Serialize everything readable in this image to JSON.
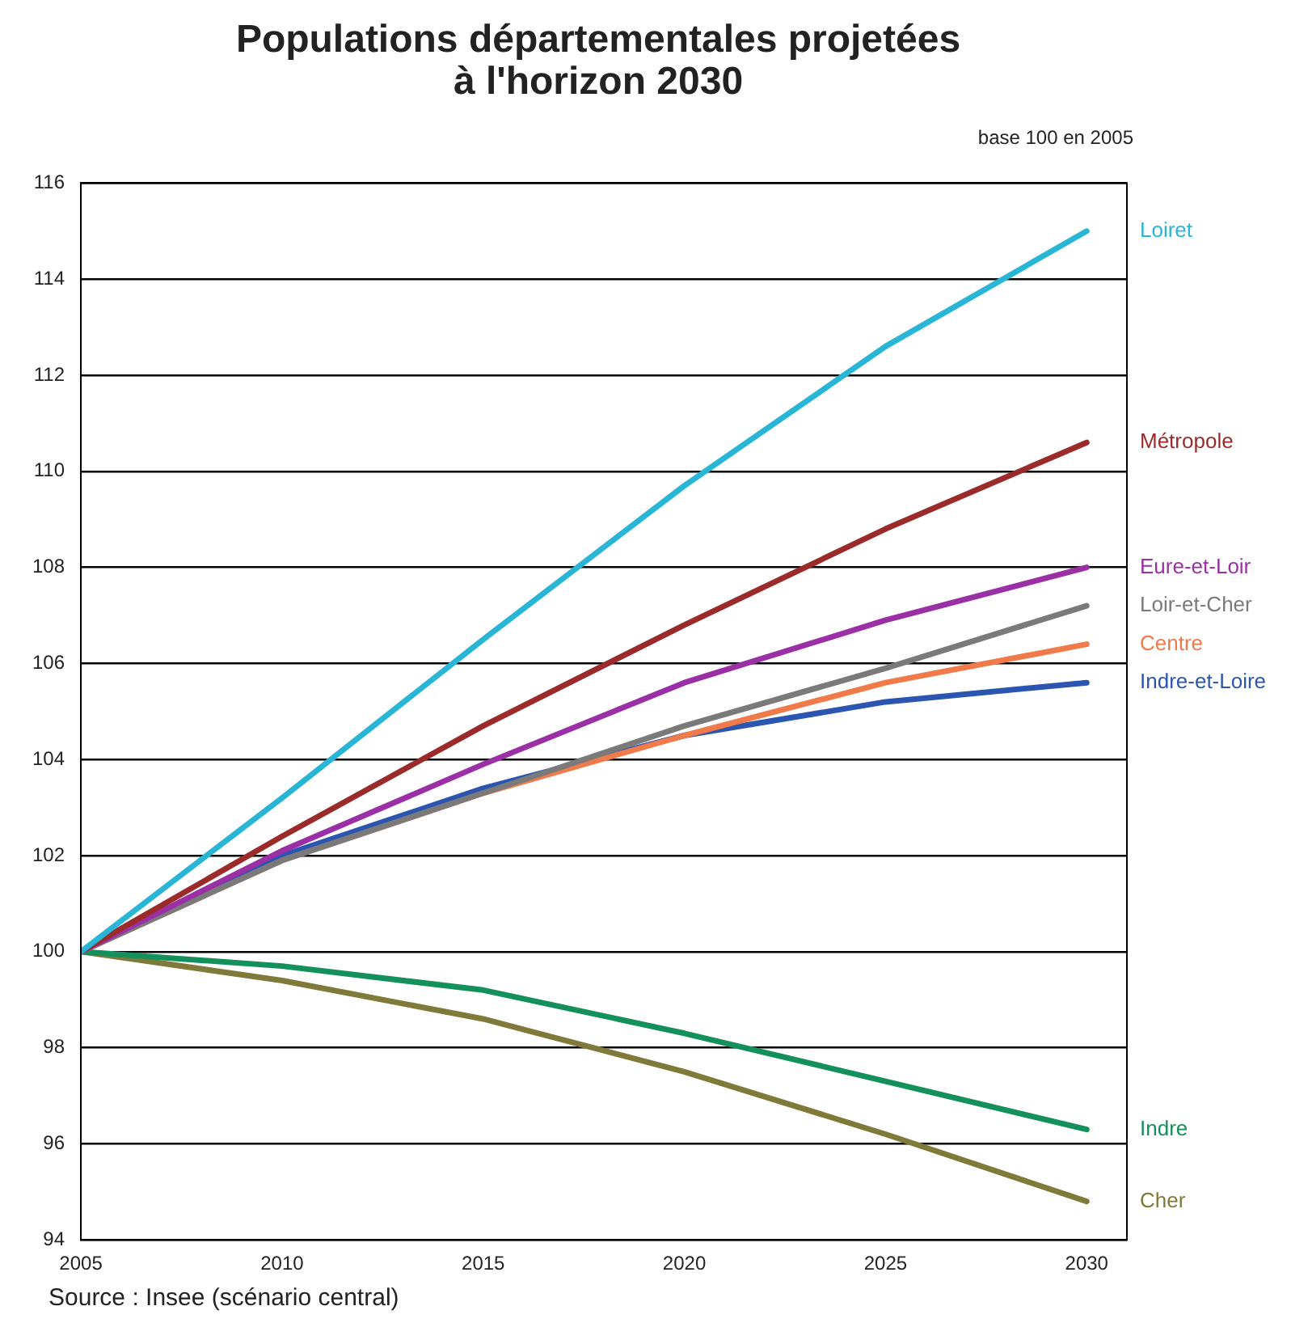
{
  "chart_data": {
    "type": "line",
    "title": "Populations départementales projetées à l'horizon 2030",
    "annotations": [
      "base 100 en 2005",
      "Source : Insee (scénario central)"
    ],
    "x": [
      2005,
      2010,
      2015,
      2020,
      2025,
      2030
    ],
    "series": [
      {
        "name": "Loiret",
        "color": "#29b6d6",
        "values": [
          100,
          103.2,
          106.5,
          109.7,
          112.6,
          115.0
        ]
      },
      {
        "name": "Métropole",
        "color": "#9b2b2b",
        "values": [
          100,
          102.4,
          104.7,
          106.8,
          108.8,
          110.6
        ]
      },
      {
        "name": "Eure-et-Loir",
        "color": "#9b2fa6",
        "values": [
          100,
          102.1,
          103.9,
          105.6,
          106.9,
          108.0
        ]
      },
      {
        "name": "Loir-et-Cher",
        "color": "#7a7a7a",
        "values": [
          100,
          101.9,
          103.3,
          104.7,
          105.9,
          107.2
        ]
      },
      {
        "name": "Centre",
        "color": "#f07a4a",
        "values": [
          100,
          101.9,
          103.3,
          104.5,
          105.6,
          106.4
        ]
      },
      {
        "name": "Indre-et-Loire",
        "color": "#2a55b0",
        "values": [
          100,
          102.0,
          103.4,
          104.5,
          105.2,
          105.6
        ]
      },
      {
        "name": "Indre",
        "color": "#14905a",
        "values": [
          100,
          99.7,
          99.2,
          98.3,
          97.3,
          96.3
        ]
      },
      {
        "name": "Cher",
        "color": "#7f7a3a",
        "values": [
          100,
          99.4,
          98.6,
          97.5,
          96.2,
          94.8
        ]
      }
    ],
    "xlim": [
      2005,
      2031
    ],
    "xticks": [
      2005,
      2010,
      2015,
      2020,
      2025,
      2030
    ],
    "ylim": [
      94,
      116
    ],
    "yticks": [
      94,
      96,
      98,
      100,
      102,
      104,
      106,
      108,
      110,
      112,
      114,
      116
    ],
    "grid": "y",
    "legend": false,
    "marker": "none",
    "line_style": "solid"
  }
}
